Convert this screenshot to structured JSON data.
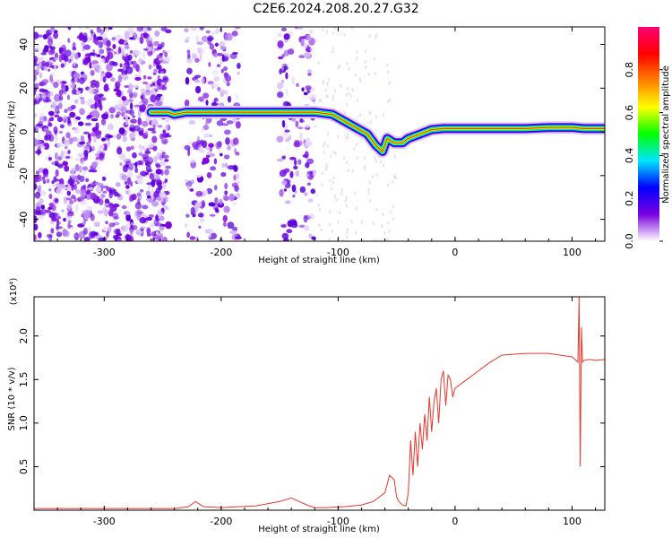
{
  "title": "C2E6.2024.208.20.27.G32",
  "chart_data": [
    {
      "type": "heatmap",
      "xlabel": "Height of straight line (km)",
      "ylabel": "Frequency (Hz)",
      "xlim": [
        -360,
        128
      ],
      "ylim": [
        -50,
        48
      ],
      "x_ticks": [
        -300,
        -200,
        -100,
        0,
        100
      ],
      "y_ticks": [
        -40,
        -20,
        0,
        20,
        40
      ],
      "colorbar": {
        "label": "Normalized spectral amplitude",
        "range": [
          0.0,
          1.0
        ],
        "ticks": [
          "0.0",
          "0.2",
          "0.4",
          "0.6",
          "0.8"
        ],
        "colors": [
          "#ffffff",
          "#7b00e0",
          "#0000ff",
          "#00e5ff",
          "#00ff00",
          "#ffff00",
          "#ff7f00",
          "#ff0000",
          "#ff0077"
        ]
      },
      "noise_regions_km": [
        [
          -360,
          -245
        ],
        [
          -230,
          -185
        ],
        [
          -150,
          -120
        ]
      ],
      "signal_trace": {
        "x": [
          -260,
          -245,
          -240,
          -230,
          -200,
          -160,
          -150,
          -140,
          -120,
          -105,
          -95,
          -85,
          -75,
          -68,
          -62,
          -58,
          -52,
          -45,
          -40,
          -30,
          -20,
          -10,
          0,
          20,
          60,
          80,
          100,
          110,
          128
        ],
        "y": [
          9,
          9,
          8,
          9,
          9,
          9,
          9,
          9,
          9,
          8,
          5,
          2,
          -1,
          -6,
          -9,
          -3,
          -5,
          -5,
          -3,
          -1,
          1,
          1.5,
          1.5,
          1.5,
          1.5,
          2,
          2,
          1.5,
          1.5
        ]
      }
    },
    {
      "type": "line",
      "xlabel": "Height of straight line (km)",
      "ylabel": "SNR (10 * v/v)",
      "y_multiplier": "(x10⁴)",
      "xlim": [
        -360,
        128
      ],
      "ylim": [
        0,
        2.45
      ],
      "x_ticks": [
        -300,
        -200,
        -100,
        0,
        100
      ],
      "y_ticks": [
        "0.5",
        "1.0",
        "1.5",
        "2.0"
      ],
      "series": [
        {
          "color": "#e8372c",
          "x": [
            -360,
            -240,
            -228,
            -222,
            -215,
            -200,
            -170,
            -150,
            -140,
            -130,
            -125,
            -120,
            -110,
            -95,
            -80,
            -70,
            -60,
            -56,
            -52,
            -50,
            -48,
            -45,
            -42,
            -40,
            -38,
            -36,
            -34,
            -32,
            -30,
            -28,
            -26,
            -24,
            -22,
            -20,
            -18,
            -16,
            -14,
            -12,
            -10,
            -8,
            -6,
            -4,
            -2,
            0,
            5,
            10,
            15,
            20,
            25,
            30,
            40,
            60,
            80,
            90,
            100,
            105,
            106,
            107,
            108,
            109,
            110,
            115,
            120,
            128
          ],
          "y": [
            0.02,
            0.02,
            0.04,
            0.1,
            0.04,
            0.03,
            0.05,
            0.1,
            0.14,
            0.08,
            0.05,
            0.03,
            0.03,
            0.04,
            0.06,
            0.1,
            0.2,
            0.4,
            0.35,
            0.15,
            0.1,
            0.06,
            0.05,
            0.2,
            0.8,
            0.4,
            0.9,
            0.5,
            1.0,
            0.7,
            1.1,
            0.8,
            1.3,
            0.9,
            1.25,
            1.4,
            1.0,
            1.5,
            1.6,
            1.2,
            1.55,
            1.5,
            1.3,
            1.4,
            1.45,
            1.5,
            1.55,
            1.6,
            1.65,
            1.7,
            1.78,
            1.8,
            1.8,
            1.78,
            1.76,
            1.7,
            2.45,
            0.5,
            2.1,
            1.7,
            1.72,
            1.73,
            1.72,
            1.73
          ]
        }
      ]
    }
  ]
}
